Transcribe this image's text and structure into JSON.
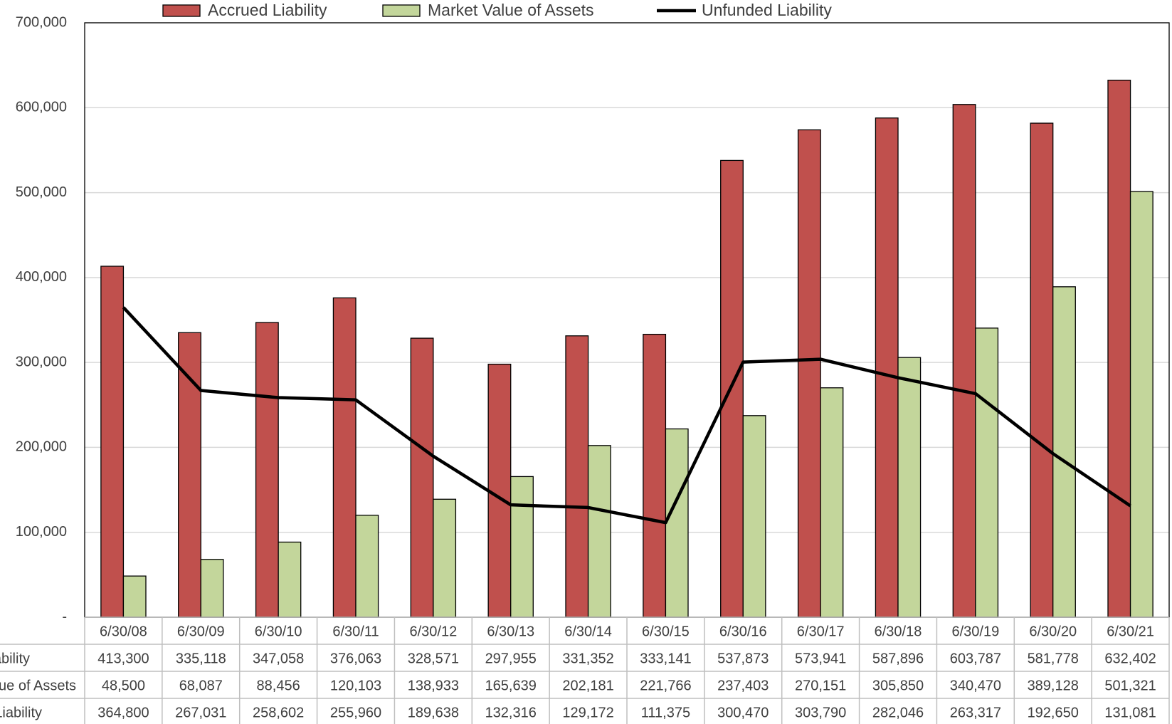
{
  "chart_data": {
    "type": "bar",
    "categories": [
      "6/30/08",
      "6/30/09",
      "6/30/10",
      "6/30/11",
      "6/30/12",
      "6/30/13",
      "6/30/14",
      "6/30/15",
      "6/30/16",
      "6/30/17",
      "6/30/18",
      "6/30/19",
      "6/30/20",
      "6/30/21"
    ],
    "series": [
      {
        "name": "Accrued Liability",
        "type": "bar",
        "color": "#c0504d",
        "values": [
          413300,
          335118,
          347058,
          376063,
          328571,
          297955,
          331352,
          333141,
          537873,
          573941,
          587896,
          603787,
          581778,
          632402
        ],
        "value_labels": [
          "413,300",
          "335,118",
          "347,058",
          "376,063",
          "328,571",
          "297,955",
          "331,352",
          "333,141",
          "537,873",
          "573,941",
          "587,896",
          "603,787",
          "581,778",
          "632,402"
        ]
      },
      {
        "name": "Market Value of Assets",
        "type": "bar",
        "color": "#c3d69b",
        "values": [
          48500,
          68087,
          88456,
          120103,
          138933,
          165639,
          202181,
          221766,
          237403,
          270151,
          305850,
          340470,
          389128,
          501321
        ],
        "value_labels": [
          "48,500",
          "68,087",
          "88,456",
          "120,103",
          "138,933",
          "165,639",
          "202,181",
          "221,766",
          "237,403",
          "270,151",
          "305,850",
          "340,470",
          "389,128",
          "501,321"
        ]
      },
      {
        "name": "Unfunded Liability",
        "type": "line",
        "color": "#000000",
        "values": [
          364800,
          267031,
          258602,
          255960,
          189638,
          132316,
          129172,
          111375,
          300470,
          303790,
          282046,
          263317,
          192650,
          131081
        ],
        "value_labels": [
          "364,800",
          "267,031",
          "258,602",
          "255,960",
          "189,638",
          "132,316",
          "129,172",
          "111,375",
          "300,470",
          "303,790",
          "282,046",
          "263,317",
          "192,650",
          "131,081"
        ]
      }
    ],
    "ylim": [
      0,
      700000
    ],
    "yticks": [
      {
        "value": 0,
        "label": "-"
      },
      {
        "value": 100000,
        "label": "100,000"
      },
      {
        "value": 200000,
        "label": "200,000"
      },
      {
        "value": 300000,
        "label": "300,000"
      },
      {
        "value": 400000,
        "label": "400,000"
      },
      {
        "value": 500000,
        "label": "500,000"
      },
      {
        "value": 600000,
        "label": "600,000"
      },
      {
        "value": 700000,
        "label": "700,000"
      }
    ],
    "grid": true,
    "legend": "top"
  }
}
